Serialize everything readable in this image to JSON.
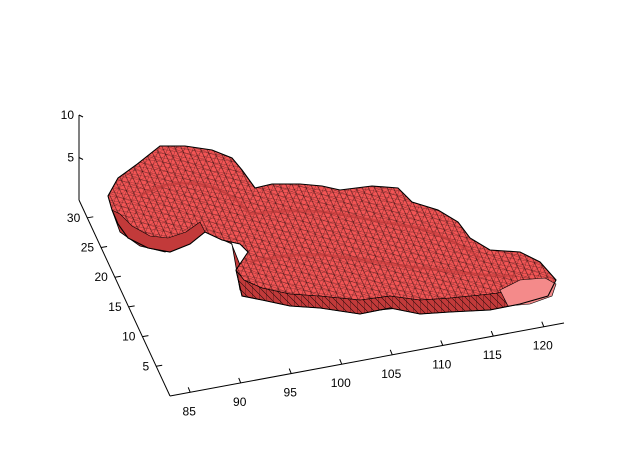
{
  "chart_data": {
    "type": "surface-3d",
    "title": "",
    "xlabel": "",
    "ylabel": "",
    "zlabel": "",
    "xlim": [
      83,
      122
    ],
    "ylim": [
      0,
      33
    ],
    "zlim": [
      0,
      10
    ],
    "x_ticks": [
      85,
      90,
      95,
      100,
      105,
      110,
      115,
      120
    ],
    "y_ticks": [
      5,
      10,
      15,
      20,
      25,
      30
    ],
    "z_ticks": [
      5,
      10
    ],
    "grid": false,
    "legend": "none",
    "colors": {
      "face": "#f25555",
      "face_dark": "#c23a3a",
      "face_light": "#ff7a7a",
      "end_cap": "#f48a8a",
      "edge": "#000000",
      "axis": "#000000",
      "background": "#ffffff"
    }
  }
}
